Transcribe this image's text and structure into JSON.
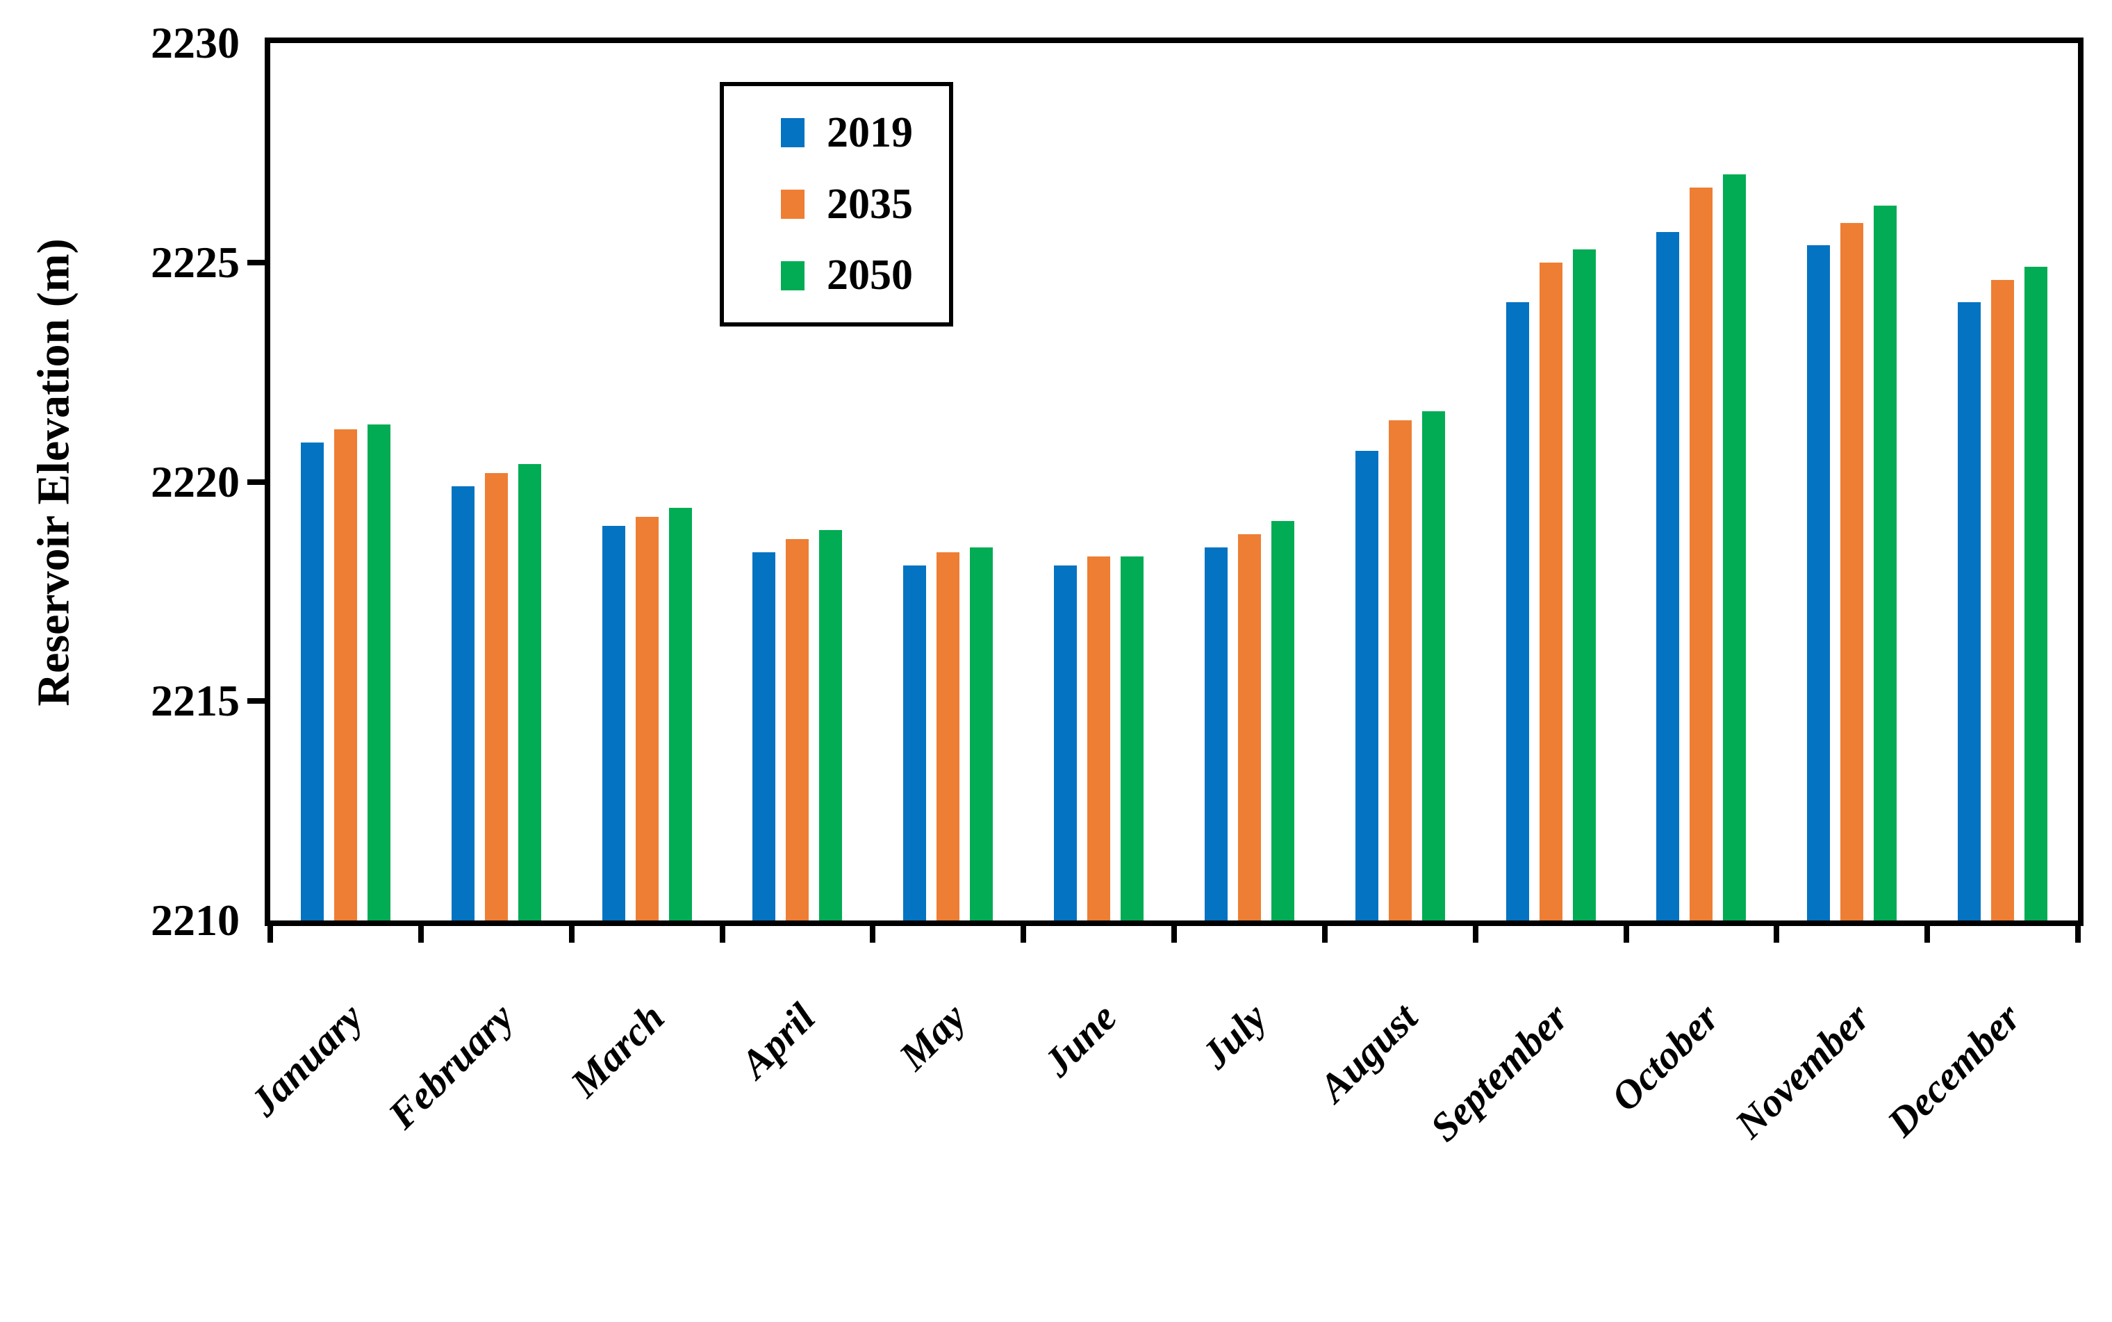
{
  "chart_data": {
    "type": "bar",
    "title": "",
    "xlabel": "",
    "ylabel": "Reservoir Elevation (m)",
    "categories": [
      "January",
      "February",
      "March",
      "April",
      "May",
      "June",
      "July",
      "August",
      "September",
      "October",
      "November",
      "December"
    ],
    "series": [
      {
        "name": "2019",
        "color": "#0473c2",
        "values": [
          2220.9,
          2219.9,
          2219.0,
          2218.4,
          2218.1,
          2218.1,
          2218.5,
          2220.7,
          2224.1,
          2225.7,
          2225.4,
          2224.1
        ]
      },
      {
        "name": "2035",
        "color": "#ee7e33",
        "values": [
          2221.2,
          2220.2,
          2219.2,
          2218.7,
          2218.4,
          2218.3,
          2218.8,
          2221.4,
          2225.0,
          2226.7,
          2225.9,
          2224.6
        ]
      },
      {
        "name": "2050",
        "color": "#02ac54",
        "values": [
          2221.3,
          2220.4,
          2219.4,
          2218.9,
          2218.5,
          2218.3,
          2219.1,
          2221.6,
          2225.3,
          2227.0,
          2226.3,
          2224.9
        ]
      }
    ],
    "ylim": [
      2210,
      2230
    ],
    "yticks": [
      2210,
      2215,
      2220,
      2225,
      2230
    ],
    "grid": false,
    "legend_position": "upper-left-inside",
    "axis_color": "#000000",
    "background_color": "#ffffff"
  }
}
